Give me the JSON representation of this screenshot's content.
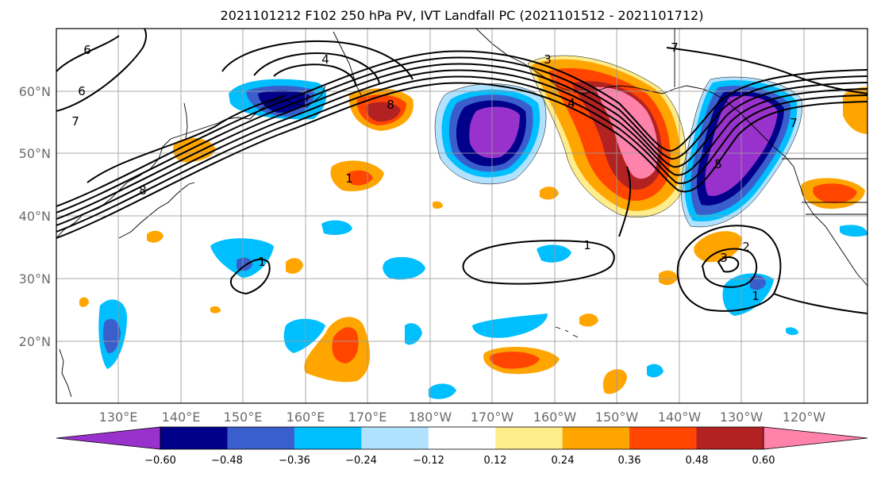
{
  "title": "2021101212 F102 250 hPa PV, IVT Landfall PC (2021101512 - 2021101712)",
  "map": {
    "lat_ticks": [
      "20°N",
      "30°N",
      "40°N",
      "50°N",
      "60°N"
    ],
    "lon_ticks": [
      "130°E",
      "140°E",
      "150°E",
      "160°E",
      "170°E",
      "180°W",
      "170°W",
      "160°W",
      "150°W",
      "140°W",
      "130°W",
      "120°W"
    ],
    "contour_labels": [
      "6",
      "6",
      "7",
      "4",
      "8",
      "1",
      "1",
      "1",
      "7",
      "2",
      "3",
      "1",
      "8",
      "5",
      "4",
      "3",
      "7"
    ]
  },
  "colorbar": {
    "tick_labels": [
      "−0.60",
      "−0.48",
      "−0.36",
      "−0.24",
      "−0.12",
      "0.12",
      "0.24",
      "0.36",
      "0.48",
      "0.60"
    ],
    "colors": [
      "#9932cc",
      "#00008b",
      "#3a5fcd",
      "#00bfff",
      "#b0e2ff",
      "#ffffff",
      "#ffec8b",
      "#ffa500",
      "#ff4500",
      "#b22222",
      "#ff82ab"
    ]
  }
}
